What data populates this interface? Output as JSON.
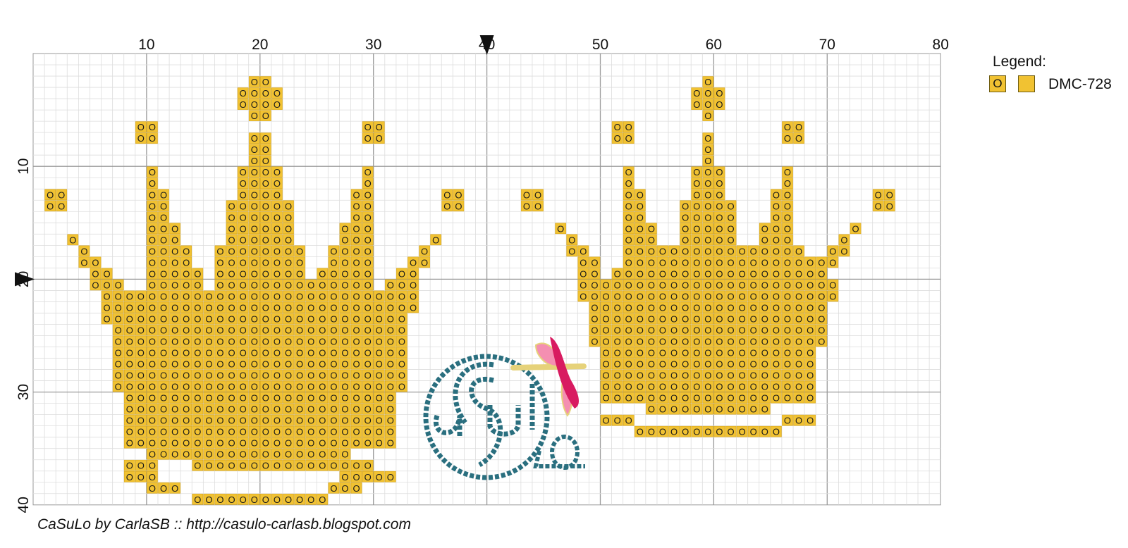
{
  "pattern": {
    "cols": 80,
    "rows": 40,
    "x_ticks": [
      10,
      20,
      30,
      40,
      50,
      60,
      70,
      80
    ],
    "y_ticks": [
      10,
      20,
      30,
      40
    ],
    "center_marker_col": 40,
    "center_marker_row": 20,
    "symbol": "O",
    "color": "#f1c232",
    "grid_color_minor": "#dddddd",
    "grid_color_major": "#999999",
    "stitch_rows": [
      [
        3,
        [
          [
            20,
            21
          ],
          [
            60,
            60
          ]
        ]
      ],
      [
        4,
        [
          [
            19,
            22
          ],
          [
            59,
            61
          ]
        ]
      ],
      [
        5,
        [
          [
            19,
            22
          ],
          [
            59,
            61
          ]
        ]
      ],
      [
        6,
        [
          [
            20,
            21
          ],
          [
            60,
            60
          ]
        ]
      ],
      [
        7,
        [
          [
            10,
            11
          ],
          [
            30,
            31
          ],
          [
            52,
            53
          ],
          [
            67,
            68
          ]
        ]
      ],
      [
        8,
        [
          [
            10,
            11
          ],
          [
            20,
            21
          ],
          [
            30,
            31
          ],
          [
            52,
            53
          ],
          [
            60,
            60
          ],
          [
            67,
            68
          ]
        ]
      ],
      [
        9,
        [
          [
            20,
            21
          ],
          [
            60,
            60
          ]
        ]
      ],
      [
        10,
        [
          [
            20,
            21
          ],
          [
            60,
            60
          ]
        ]
      ],
      [
        11,
        [
          [
            11,
            11
          ],
          [
            19,
            22
          ],
          [
            30,
            30
          ],
          [
            53,
            53
          ],
          [
            59,
            61
          ],
          [
            67,
            67
          ]
        ]
      ],
      [
        12,
        [
          [
            11,
            11
          ],
          [
            19,
            22
          ],
          [
            30,
            30
          ],
          [
            53,
            53
          ],
          [
            59,
            61
          ],
          [
            67,
            67
          ]
        ]
      ],
      [
        13,
        [
          [
            2,
            3
          ],
          [
            11,
            12
          ],
          [
            19,
            22
          ],
          [
            29,
            30
          ],
          [
            37,
            38
          ],
          [
            44,
            45
          ],
          [
            53,
            54
          ],
          [
            59,
            61
          ],
          [
            66,
            67
          ],
          [
            75,
            76
          ]
        ]
      ],
      [
        14,
        [
          [
            2,
            3
          ],
          [
            11,
            12
          ],
          [
            18,
            23
          ],
          [
            29,
            30
          ],
          [
            37,
            38
          ],
          [
            44,
            45
          ],
          [
            53,
            54
          ],
          [
            58,
            62
          ],
          [
            66,
            67
          ],
          [
            75,
            76
          ]
        ]
      ],
      [
        15,
        [
          [
            11,
            12
          ],
          [
            18,
            23
          ],
          [
            29,
            30
          ],
          [
            53,
            54
          ],
          [
            58,
            62
          ],
          [
            66,
            67
          ]
        ]
      ],
      [
        16,
        [
          [
            11,
            13
          ],
          [
            18,
            23
          ],
          [
            28,
            30
          ],
          [
            47,
            47
          ],
          [
            53,
            55
          ],
          [
            58,
            62
          ],
          [
            65,
            67
          ],
          [
            73,
            73
          ]
        ]
      ],
      [
        17,
        [
          [
            4,
            4
          ],
          [
            11,
            13
          ],
          [
            18,
            23
          ],
          [
            28,
            30
          ],
          [
            36,
            36
          ],
          [
            48,
            48
          ],
          [
            53,
            55
          ],
          [
            58,
            62
          ],
          [
            65,
            67
          ],
          [
            72,
            72
          ]
        ]
      ],
      [
        18,
        [
          [
            5,
            5
          ],
          [
            11,
            14
          ],
          [
            17,
            24
          ],
          [
            27,
            30
          ],
          [
            35,
            35
          ],
          [
            48,
            49
          ],
          [
            53,
            56
          ],
          [
            57,
            63
          ],
          [
            64,
            68
          ],
          [
            71,
            72
          ]
        ]
      ],
      [
        19,
        [
          [
            5,
            6
          ],
          [
            11,
            14
          ],
          [
            17,
            24
          ],
          [
            27,
            30
          ],
          [
            34,
            35
          ],
          [
            49,
            50
          ],
          [
            53,
            69
          ],
          [
            70,
            71
          ]
        ]
      ],
      [
        20,
        [
          [
            6,
            7
          ],
          [
            11,
            15
          ],
          [
            17,
            24
          ],
          [
            26,
            30
          ],
          [
            33,
            34
          ],
          [
            49,
            50
          ],
          [
            52,
            70
          ]
        ]
      ],
      [
        21,
        [
          [
            6,
            8
          ],
          [
            11,
            15
          ],
          [
            17,
            25
          ],
          [
            26,
            30
          ],
          [
            32,
            34
          ],
          [
            49,
            71
          ]
        ]
      ],
      [
        22,
        [
          [
            7,
            34
          ]
        ],
        [
          49,
          71
        ]
      ],
      [
        23,
        [
          [
            7,
            34
          ],
          [
            50,
            70
          ]
        ]
      ],
      [
        24,
        [
          [
            7,
            33
          ],
          [
            50,
            70
          ]
        ]
      ],
      [
        25,
        [
          [
            8,
            33
          ],
          [
            50,
            70
          ]
        ]
      ],
      [
        26,
        [
          [
            8,
            33
          ],
          [
            50,
            70
          ]
        ]
      ],
      [
        27,
        [
          [
            8,
            33
          ],
          [
            51,
            69
          ]
        ]
      ],
      [
        28,
        [
          [
            8,
            33
          ],
          [
            51,
            69
          ]
        ]
      ],
      [
        29,
        [
          [
            8,
            33
          ],
          [
            51,
            69
          ]
        ]
      ],
      [
        30,
        [
          [
            8,
            33
          ],
          [
            51,
            69
          ]
        ]
      ],
      [
        31,
        [
          [
            9,
            32
          ],
          [
            51,
            69
          ]
        ]
      ],
      [
        32,
        [
          [
            9,
            32
          ],
          [
            55,
            65
          ]
        ]
      ],
      [
        33,
        [
          [
            9,
            32
          ],
          [
            51,
            53
          ],
          [
            67,
            69
          ]
        ]
      ],
      [
        34,
        [
          [
            9,
            32
          ],
          [
            54,
            66
          ]
        ]
      ],
      [
        35,
        [
          [
            9,
            32
          ]
        ]
      ],
      [
        36,
        [
          [
            11,
            28
          ]
        ]
      ],
      [
        37,
        [
          [
            9,
            11
          ],
          [
            15,
            30
          ]
        ]
      ],
      [
        38,
        [
          [
            9,
            11
          ],
          [
            28,
            30
          ],
          [
            30,
            32
          ]
        ]
      ],
      [
        39,
        [
          [
            11,
            13
          ],
          [
            27,
            29
          ]
        ]
      ],
      [
        40,
        [
          [
            15,
            26
          ]
        ]
      ]
    ]
  },
  "logo": {
    "text_caption": "",
    "ring_color": "#2a6f7f",
    "dragonfly_body": "#d81b60",
    "dragonfly_wing": "#f48fb1",
    "dragonfly_stick": "#e6d27a"
  },
  "legend": {
    "title": "Legend:",
    "symbol": "O",
    "name": "DMC-728"
  },
  "credit": "CaSuLo by CarlaSB :: http://casulo-carlasb.blogspot.com"
}
